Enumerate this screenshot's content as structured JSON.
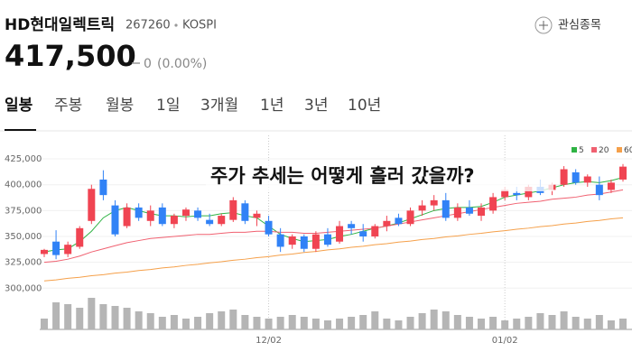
{
  "header": {
    "name": "HD현대일렉트릭",
    "code": "267260",
    "market": "KOSPI",
    "watch": "관심종목",
    "price": "417,500",
    "change": "0",
    "change_pct": "(0.00%)"
  },
  "tabs": [
    "일봉",
    "주봉",
    "월봉",
    "1일",
    "3개월",
    "1년",
    "3년",
    "10년"
  ],
  "chart_data": {
    "type": "candlestick",
    "annotation": "주가 추세는 어떻게 흘러 갔을까?",
    "categories": [
      null,
      null,
      null,
      null,
      null,
      null,
      null,
      null,
      null,
      null,
      null,
      null,
      null,
      null,
      null,
      null,
      null,
      null,
      null,
      "12/02",
      null,
      null,
      null,
      null,
      null,
      null,
      null,
      null,
      null,
      null,
      null,
      null,
      null,
      null,
      null,
      null,
      null,
      null,
      null,
      "01/02",
      null,
      null,
      null,
      null,
      null,
      null,
      null,
      null,
      null,
      null
    ],
    "open": [
      333000,
      345000,
      333000,
      340000,
      365000,
      405000,
      380000,
      360000,
      378000,
      365000,
      378000,
      362000,
      370000,
      375000,
      366000,
      362000,
      366000,
      382000,
      368000,
      365000,
      352000,
      342000,
      350000,
      338000,
      352000,
      345000,
      362000,
      355000,
      350000,
      360000,
      368000,
      362000,
      375000,
      380000,
      385000,
      368000,
      378000,
      370000,
      375000,
      388000,
      392000,
      388000,
      398000,
      395000,
      400000,
      412000,
      402000,
      400000,
      395000,
      405000
    ],
    "high": [
      338000,
      356000,
      345000,
      360000,
      400000,
      414000,
      385000,
      382000,
      382000,
      380000,
      382000,
      372000,
      378000,
      378000,
      372000,
      372000,
      388000,
      385000,
      375000,
      370000,
      358000,
      352000,
      352000,
      355000,
      358000,
      365000,
      365000,
      362000,
      362000,
      370000,
      372000,
      378000,
      385000,
      390000,
      392000,
      382000,
      385000,
      382000,
      392000,
      398000,
      398000,
      400000,
      405000,
      402000,
      418000,
      415000,
      410000,
      408000,
      405000,
      420000
    ],
    "low": [
      330000,
      328000,
      330000,
      338000,
      362000,
      385000,
      350000,
      358000,
      365000,
      360000,
      360000,
      358000,
      365000,
      365000,
      360000,
      360000,
      364000,
      362000,
      360000,
      350000,
      335000,
      338000,
      335000,
      335000,
      340000,
      343000,
      352000,
      345000,
      348000,
      355000,
      360000,
      360000,
      370000,
      375000,
      365000,
      365000,
      370000,
      365000,
      372000,
      385000,
      385000,
      385000,
      390000,
      390000,
      398000,
      400000,
      398000,
      385000,
      392000,
      403000
    ],
    "close": [
      337000,
      332000,
      342000,
      358000,
      396000,
      390000,
      352000,
      378000,
      368000,
      375000,
      362000,
      370000,
      376000,
      368000,
      362000,
      370000,
      385000,
      365000,
      372000,
      352000,
      340000,
      350000,
      338000,
      352000,
      342000,
      360000,
      358000,
      350000,
      360000,
      365000,
      362000,
      375000,
      380000,
      385000,
      368000,
      378000,
      372000,
      378000,
      388000,
      395000,
      390000,
      398000,
      392000,
      400000,
      415000,
      402000,
      408000,
      390000,
      402000,
      417500
    ],
    "volume": [
      12,
      30,
      28,
      24,
      35,
      28,
      26,
      24,
      20,
      18,
      14,
      16,
      12,
      14,
      18,
      20,
      22,
      16,
      14,
      12,
      14,
      16,
      14,
      12,
      10,
      12,
      14,
      16,
      20,
      12,
      10,
      14,
      18,
      22,
      20,
      16,
      14,
      12,
      14,
      10,
      12,
      14,
      18,
      16,
      20,
      14,
      12,
      16,
      10,
      12
    ],
    "vlim": [
      0,
      40
    ],
    "up_color": "#f04452",
    "down_color": "#3182f6",
    "volume_color": "#b5b5b5",
    "series": [
      {
        "name": "5",
        "color": "#2fb344",
        "values": [
          335000,
          337000,
          338000,
          345000,
          355000,
          368000,
          375000,
          378000,
          375000,
          372000,
          370000,
          370000,
          369000,
          370000,
          370000,
          372000,
          373000,
          370000,
          368000,
          360000,
          352000,
          348000,
          345000,
          346000,
          347000,
          350000,
          352000,
          355000,
          358000,
          360000,
          363000,
          367000,
          371000,
          375000,
          377000,
          378000,
          378000,
          379000,
          383000,
          388000,
          390000,
          392000,
          394000,
          397000,
          400000,
          402000,
          403000,
          402000,
          404000,
          407000
        ]
      },
      {
        "name": "20",
        "color": "#f06070",
        "values": [
          325000,
          326000,
          328000,
          331000,
          335000,
          338000,
          341000,
          344000,
          346000,
          348000,
          349000,
          350000,
          351000,
          352000,
          352000,
          353000,
          354000,
          354000,
          355000,
          355000,
          354000,
          354000,
          353000,
          353000,
          354000,
          355000,
          356000,
          357000,
          358000,
          360000,
          362000,
          364000,
          366000,
          368000,
          370000,
          372000,
          374000,
          376000,
          378000,
          380000,
          382000,
          383000,
          384000,
          386000,
          387000,
          388000,
          390000,
          391000,
          393000,
          395000
        ]
      },
      {
        "name": "60",
        "color": "#f5a04a",
        "values": [
          307000,
          308000,
          309500,
          310500,
          312000,
          313000,
          314500,
          315500,
          317000,
          318000,
          319500,
          320500,
          322000,
          323000,
          324500,
          325500,
          327000,
          328000,
          329500,
          330500,
          332000,
          333000,
          334500,
          335500,
          337000,
          338000,
          339500,
          340500,
          342000,
          343000,
          344500,
          345500,
          347000,
          348000,
          349500,
          350500,
          352000,
          353000,
          354500,
          355500,
          357000,
          358000,
          359500,
          360500,
          362000,
          363000,
          364500,
          365500,
          367000,
          368000
        ]
      }
    ],
    "ylim": [
      295000,
      439000
    ],
    "yticks": [
      {
        "value": 300000,
        "label": "300,000"
      },
      {
        "value": 325000,
        "label": "325,000"
      },
      {
        "value": 350000,
        "label": "350,000"
      },
      {
        "value": 375000,
        "label": "375,000"
      },
      {
        "value": 400000,
        "label": "400,000"
      },
      {
        "value": 425000,
        "label": "425,000"
      }
    ],
    "grid": true
  }
}
